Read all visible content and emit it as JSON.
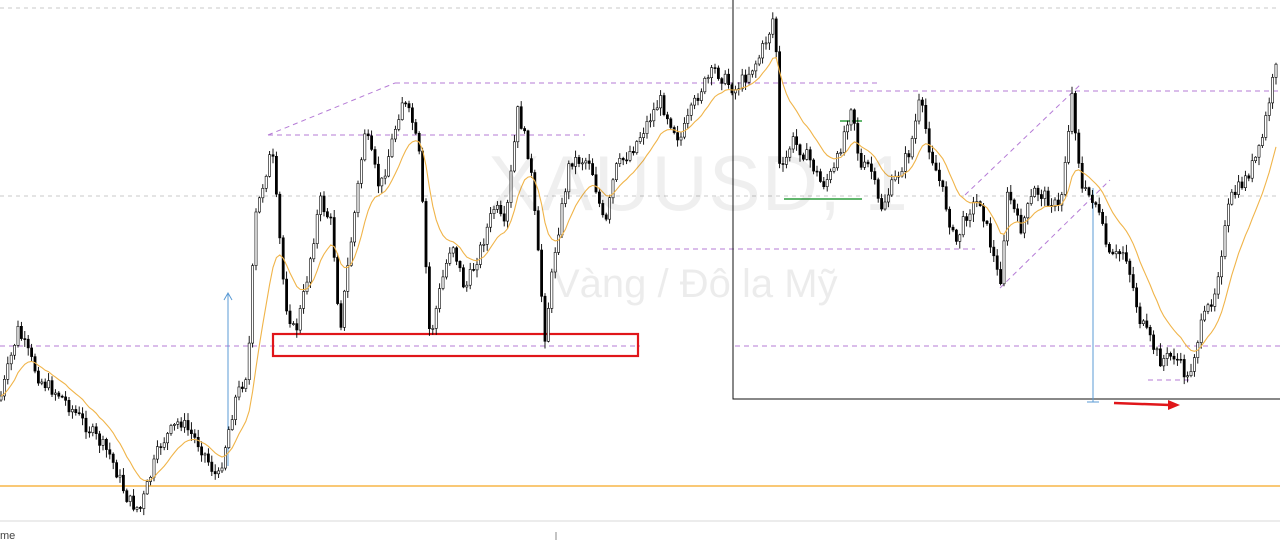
{
  "watermark": {
    "symbol": "XAUUSD, 1",
    "description": "Vàng / Đô la Mỹ"
  },
  "axis": {
    "time_label_fragment": "me"
  },
  "colors": {
    "candle": "#000000",
    "candle_wick": "#000000",
    "ema": "#f0b449",
    "level_line": "#b57bd6",
    "support_box": "#e0161a",
    "horizontal_orange": "#f5a623",
    "measure_blue": "#5b9bd5",
    "arrow_red": "#e0161a",
    "box_black": "#111111",
    "green_mark": "#2e9e3e",
    "grid": "#c8c8c8"
  },
  "chart_data": {
    "type": "candlestick",
    "title": "",
    "xlabel": "",
    "ylabel": "",
    "price_path_anchor_points": [
      [
        0,
        400
      ],
      [
        18,
        330
      ],
      [
        40,
        380
      ],
      [
        60,
        395
      ],
      [
        90,
        430
      ],
      [
        110,
        455
      ],
      [
        128,
        500
      ],
      [
        140,
        510
      ],
      [
        160,
        445
      ],
      [
        180,
        420
      ],
      [
        200,
        445
      ],
      [
        218,
        480
      ],
      [
        235,
        400
      ],
      [
        248,
        370
      ],
      [
        255,
        220
      ],
      [
        265,
        175
      ],
      [
        272,
        150
      ],
      [
        285,
        300
      ],
      [
        295,
        335
      ],
      [
        305,
        290
      ],
      [
        320,
        200
      ],
      [
        332,
        225
      ],
      [
        340,
        330
      ],
      [
        350,
        250
      ],
      [
        365,
        130
      ],
      [
        380,
        190
      ],
      [
        390,
        150
      ],
      [
        402,
        100
      ],
      [
        412,
        120
      ],
      [
        420,
        160
      ],
      [
        430,
        340
      ],
      [
        440,
        290
      ],
      [
        452,
        240
      ],
      [
        465,
        290
      ],
      [
        480,
        250
      ],
      [
        495,
        205
      ],
      [
        505,
        230
      ],
      [
        518,
        110
      ],
      [
        530,
        160
      ],
      [
        545,
        335
      ],
      [
        555,
        250
      ],
      [
        570,
        160
      ],
      [
        590,
        160
      ],
      [
        605,
        230
      ],
      [
        615,
        170
      ],
      [
        635,
        145
      ],
      [
        660,
        100
      ],
      [
        680,
        140
      ],
      [
        700,
        90
      ],
      [
        715,
        70
      ],
      [
        735,
        90
      ],
      [
        758,
        60
      ],
      [
        770,
        30
      ],
      [
        775,
        10
      ],
      [
        780,
        180
      ],
      [
        792,
        140
      ],
      [
        810,
        160
      ],
      [
        822,
        185
      ],
      [
        835,
        170
      ],
      [
        852,
        100
      ],
      [
        860,
        170
      ],
      [
        870,
        165
      ],
      [
        880,
        210
      ],
      [
        895,
        180
      ],
      [
        910,
        150
      ],
      [
        920,
        100
      ],
      [
        930,
        150
      ],
      [
        945,
        200
      ],
      [
        955,
        245
      ],
      [
        968,
        210
      ],
      [
        980,
        200
      ],
      [
        992,
        250
      ],
      [
        1000,
        285
      ],
      [
        1008,
        190
      ],
      [
        1020,
        230
      ],
      [
        1035,
        190
      ],
      [
        1050,
        200
      ],
      [
        1060,
        210
      ],
      [
        1072,
        95
      ],
      [
        1082,
        190
      ],
      [
        1095,
        200
      ],
      [
        1110,
        260
      ],
      [
        1125,
        250
      ],
      [
        1140,
        320
      ],
      [
        1160,
        360
      ],
      [
        1175,
        355
      ],
      [
        1188,
        380
      ],
      [
        1200,
        330
      ],
      [
        1215,
        290
      ],
      [
        1230,
        200
      ],
      [
        1245,
        180
      ],
      [
        1260,
        150
      ],
      [
        1275,
        70
      ]
    ],
    "support_zone": {
      "label": ""
    },
    "levels": [
      "resistance-top",
      "resistance-mid",
      "mid-level",
      "support-level"
    ]
  }
}
